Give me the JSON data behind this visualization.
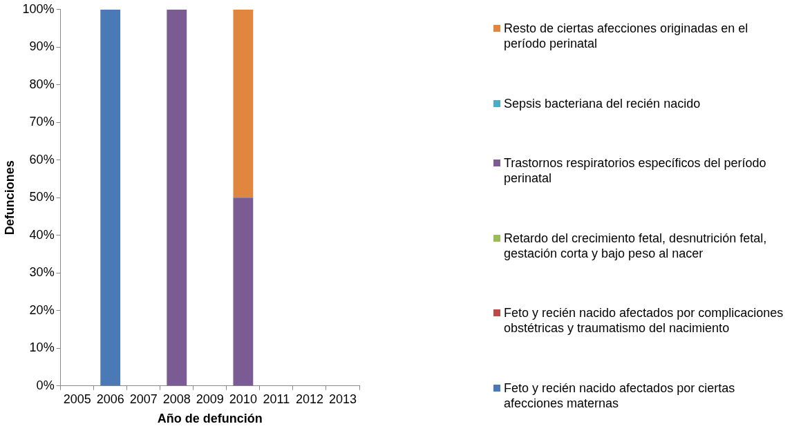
{
  "chart_data": {
    "type": "bar",
    "stacked": true,
    "xlabel": "Año de defunción",
    "ylabel": "Defunciones",
    "categories": [
      "2005",
      "2006",
      "2007",
      "2008",
      "2009",
      "2010",
      "2011",
      "2012",
      "2013"
    ],
    "series": [
      {
        "name": "Feto y recién nacido afectados por ciertas afecciones maternas",
        "color": "#4a7ab5",
        "values": [
          0,
          100,
          0,
          0,
          0,
          0,
          0,
          0,
          0
        ]
      },
      {
        "name": "Feto y recién nacido afectados por complicaciones obstétricas y traumatismo del nacimiento",
        "color": "#bc4b48",
        "values": [
          0,
          0,
          0,
          0,
          0,
          0,
          0,
          0,
          0
        ]
      },
      {
        "name": "Retardo del crecimiento fetal, desnutrición fetal, gestación corta y bajo peso al nacer",
        "color": "#9bbb59",
        "values": [
          0,
          0,
          0,
          0,
          0,
          0,
          0,
          0,
          0
        ]
      },
      {
        "name": "Trastornos respiratorios específicos del período perinatal",
        "color": "#7a5b94",
        "values": [
          0,
          0,
          0,
          100,
          0,
          50,
          0,
          0,
          0
        ]
      },
      {
        "name": "Sepsis bacteriana del recién nacido",
        "color": "#4bacc6",
        "values": [
          0,
          0,
          0,
          0,
          0,
          0,
          0,
          0,
          0
        ]
      },
      {
        "name": "Resto de ciertas afecciones originadas en el período perinatal",
        "color": "#e0863f",
        "values": [
          0,
          0,
          0,
          0,
          0,
          50,
          0,
          0,
          0
        ]
      }
    ],
    "ylim": [
      0,
      100
    ],
    "yticks": [
      {
        "value": 0,
        "label": "0%"
      },
      {
        "value": 10,
        "label": "10%"
      },
      {
        "value": 20,
        "label": "20%"
      },
      {
        "value": 30,
        "label": "30%"
      },
      {
        "value": 40,
        "label": "40%"
      },
      {
        "value": 50,
        "label": "50%"
      },
      {
        "value": 60,
        "label": "60%"
      },
      {
        "value": 70,
        "label": "70%"
      },
      {
        "value": 80,
        "label": "80%"
      },
      {
        "value": 90,
        "label": "90%"
      },
      {
        "value": 100,
        "label": "100%"
      }
    ],
    "grid": false,
    "legend": "right"
  }
}
